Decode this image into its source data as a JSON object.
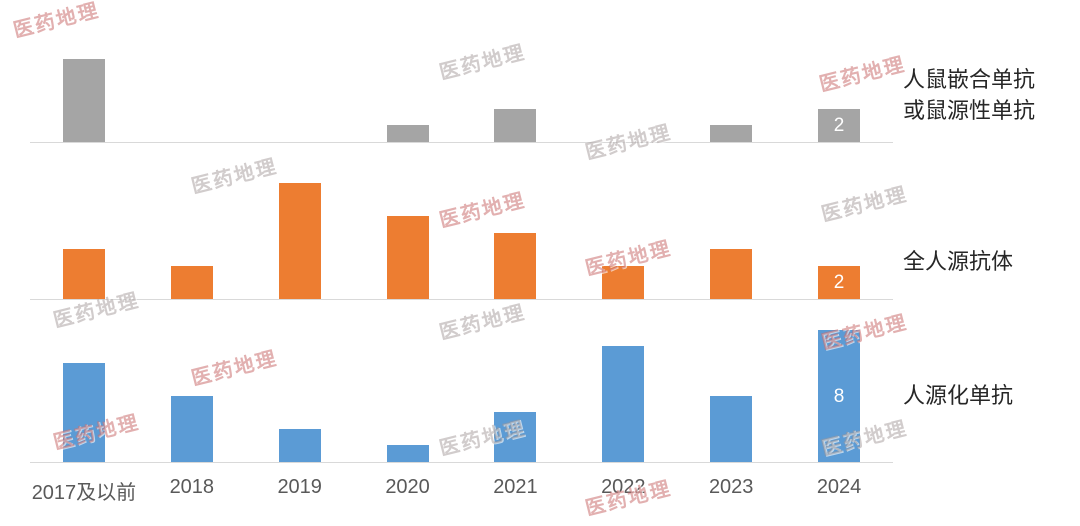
{
  "watermark": {
    "text": "医药地理"
  },
  "chart_data": {
    "type": "bar",
    "layout": "small-multiples: 3 vertically stacked panels sharing one x-axis, one series per panel, series label at right of each panel",
    "title": "",
    "xlabel": "",
    "ylabel": "",
    "grid": "baseline only per panel",
    "legend_position": "right",
    "ylim_per_panel": [
      0,
      8
    ],
    "categories": [
      "2017及以前",
      "2018",
      "2019",
      "2020",
      "2021",
      "2022",
      "2023",
      "2024"
    ],
    "series": [
      {
        "key": "chimeric-or-murine",
        "name": "人鼠嵌合单抗或鼠源性单抗",
        "legend_lines": [
          "人鼠嵌合单抗",
          "或鼠源性单抗"
        ],
        "color": "#a5a5a5",
        "values": [
          5,
          0,
          0,
          1,
          2,
          0,
          1,
          2
        ],
        "bar_labels": [
          "",
          "",
          "",
          "",
          "",
          "",
          "",
          "2"
        ]
      },
      {
        "key": "fully-human",
        "name": "全人源抗体",
        "legend_lines": [
          "全人源抗体"
        ],
        "color": "#ed7d31",
        "values": [
          3,
          2,
          7,
          5,
          4,
          2,
          3,
          2
        ],
        "bar_labels": [
          "",
          "",
          "",
          "",
          "",
          "",
          "",
          "2"
        ]
      },
      {
        "key": "humanized",
        "name": "人源化单抗",
        "legend_lines": [
          "人源化单抗"
        ],
        "color": "#5b9bd5",
        "values": [
          6,
          4,
          2,
          1,
          3,
          7,
          4,
          8
        ],
        "bar_labels": [
          "",
          "",
          "",
          "",
          "",
          "",
          "",
          "8"
        ]
      }
    ]
  }
}
